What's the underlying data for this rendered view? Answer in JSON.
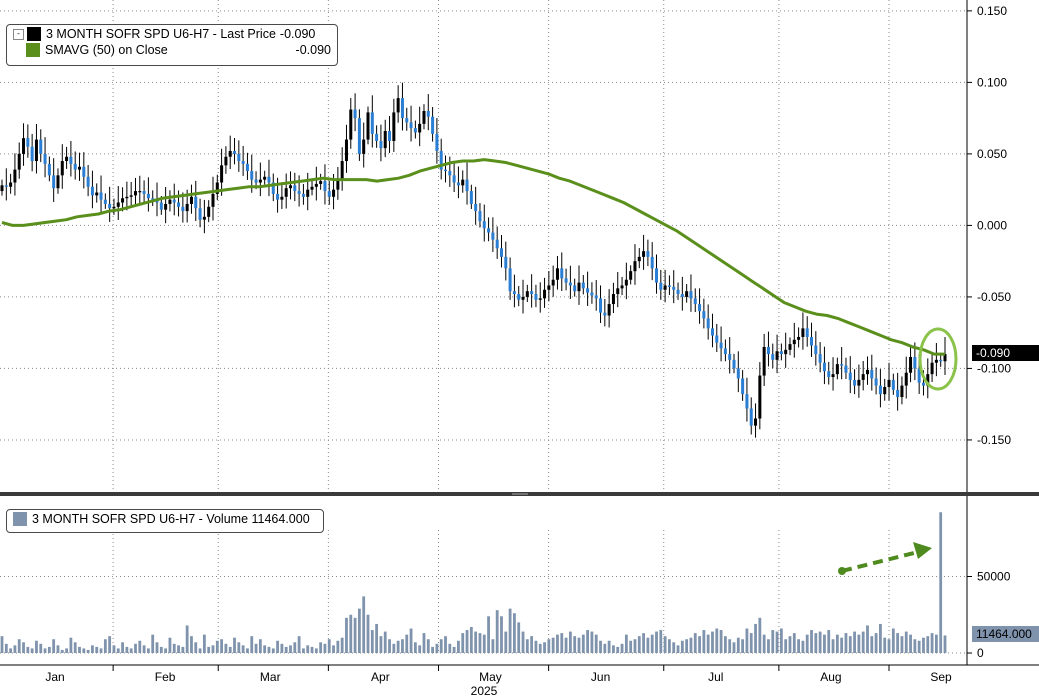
{
  "colors": {
    "up_candle": "#000000",
    "down_candle": "#2a7fd4",
    "sma_line": "#5a8f1c",
    "volume_bar": "#7f93ad",
    "highlight": "#8bc34a",
    "arrow": "#4f8a1e",
    "grid": "#8a8a8a"
  },
  "legend_price": {
    "title": "3 MONTH SOFR SPD U6-H7 - Last Price",
    "value": "-0.090",
    "sma_label": "SMAVG (50)  on Close",
    "sma_value": "-0.090"
  },
  "legend_volume": {
    "title": "3 MONTH SOFR SPD U6-H7 - Volume 11464.000"
  },
  "tags": {
    "price_tag": "-0.090",
    "volume_tag": "11464.000"
  },
  "icons": {
    "highlight": "circle-highlight-icon",
    "arrow": "dashed-arrow-icon"
  },
  "chart_data": [
    {
      "type": "candlestick",
      "title": "3 MONTH SOFR SPD U6-H7 - Last Price",
      "x_tick_labels": [
        "Jan",
        "Feb",
        "Mar",
        "Apr",
        "May",
        "Jun",
        "Jul",
        "Aug",
        "Sep"
      ],
      "x_year_label": "2025",
      "y_tick_labels": [
        "0.150",
        "0.100",
        "0.050",
        "0.000",
        "-0.050",
        "-0.100",
        "-0.150"
      ],
      "ylim": [
        -0.185,
        0.152
      ],
      "grid": true,
      "legend_position": "top-left",
      "last_value": -0.09,
      "series": [
        {
          "name": "3 MONTH SOFR SPD U6-H7 - Last Price",
          "close": [
            0.028,
            0.027,
            0.03,
            0.039,
            0.05,
            0.061,
            0.055,
            0.045,
            0.06,
            0.05,
            0.043,
            0.035,
            0.026,
            0.035,
            0.045,
            0.048,
            0.043,
            0.039,
            0.041,
            0.034,
            0.027,
            0.021,
            0.023,
            0.018,
            0.015,
            0.012,
            0.013,
            0.016,
            0.019,
            0.02,
            0.021,
            0.024,
            0.024,
            0.022,
            0.019,
            0.018,
            0.016,
            0.011,
            0.015,
            0.018,
            0.016,
            0.013,
            0.01,
            0.015,
            0.02,
            0.012,
            0.004,
            0.006,
            0.013,
            0.022,
            0.03,
            0.042,
            0.048,
            0.052,
            0.05,
            0.045,
            0.043,
            0.038,
            0.032,
            0.03,
            0.032,
            0.034,
            0.03,
            0.022,
            0.018,
            0.02,
            0.026,
            0.028,
            0.024,
            0.022,
            0.02,
            0.025,
            0.027,
            0.029,
            0.031,
            0.024,
            0.02,
            0.025,
            0.032,
            0.045,
            0.06,
            0.081,
            0.075,
            0.05,
            0.06,
            0.079,
            0.064,
            0.059,
            0.054,
            0.066,
            0.059,
            0.079,
            0.089,
            0.075,
            0.072,
            0.068,
            0.065,
            0.071,
            0.08,
            0.076,
            0.064,
            0.052,
            0.039,
            0.038,
            0.035,
            0.03,
            0.028,
            0.032,
            0.024,
            0.015,
            0.01,
            0.003,
            -0.002,
            -0.005,
            -0.01,
            -0.016,
            -0.022,
            -0.03,
            -0.046,
            -0.048,
            -0.052,
            -0.05,
            -0.046,
            -0.048,
            -0.052,
            -0.051,
            -0.045,
            -0.042,
            -0.038,
            -0.03,
            -0.037,
            -0.04,
            -0.042,
            -0.046,
            -0.04,
            -0.044,
            -0.047,
            -0.049,
            -0.051,
            -0.061,
            -0.063,
            -0.055,
            -0.048,
            -0.044,
            -0.042,
            -0.038,
            -0.032,
            -0.025,
            -0.022,
            -0.018,
            -0.022,
            -0.03,
            -0.04,
            -0.045,
            -0.042,
            -0.043,
            -0.045,
            -0.048,
            -0.05,
            -0.046,
            -0.051,
            -0.055,
            -0.06,
            -0.065,
            -0.072,
            -0.077,
            -0.082,
            -0.086,
            -0.09,
            -0.094,
            -0.1,
            -0.107,
            -0.118,
            -0.128,
            -0.14,
            -0.135,
            -0.105,
            -0.085,
            -0.09,
            -0.094,
            -0.088,
            -0.09,
            -0.087,
            -0.083,
            -0.08,
            -0.078,
            -0.072,
            -0.078,
            -0.084,
            -0.09,
            -0.096,
            -0.102,
            -0.106,
            -0.104,
            -0.097,
            -0.098,
            -0.103,
            -0.108,
            -0.112,
            -0.108,
            -0.104,
            -0.101,
            -0.107,
            -0.112,
            -0.118,
            -0.113,
            -0.108,
            -0.115,
            -0.12,
            -0.112,
            -0.103,
            -0.092,
            -0.1,
            -0.11,
            -0.112,
            -0.104,
            -0.096,
            -0.094,
            -0.095,
            -0.09
          ],
          "sma": [
            0.002,
            0.0,
            0.0,
            0.001,
            0.002,
            0.003,
            0.004,
            0.006,
            0.007,
            0.008,
            0.01,
            0.011,
            0.013,
            0.015,
            0.017,
            0.019,
            0.02,
            0.021,
            0.022,
            0.023,
            0.024,
            0.025,
            0.026,
            0.027,
            0.027,
            0.028,
            0.029,
            0.03,
            0.031,
            0.032,
            0.033,
            0.032,
            0.032,
            0.032,
            0.032,
            0.031,
            0.032,
            0.033,
            0.035,
            0.038,
            0.04,
            0.042,
            0.044,
            0.045,
            0.045,
            0.046,
            0.045,
            0.044,
            0.042,
            0.04,
            0.038,
            0.036,
            0.033,
            0.031,
            0.028,
            0.025,
            0.022,
            0.019,
            0.016,
            0.012,
            0.008,
            0.004,
            0.0,
            -0.004,
            -0.009,
            -0.014,
            -0.019,
            -0.024,
            -0.029,
            -0.034,
            -0.039,
            -0.044,
            -0.049,
            -0.054,
            -0.057,
            -0.06,
            -0.062,
            -0.063,
            -0.065,
            -0.068,
            -0.071,
            -0.074,
            -0.077,
            -0.08,
            -0.082,
            -0.085,
            -0.087,
            -0.09,
            -0.09
          ]
        }
      ]
    },
    {
      "type": "bar",
      "title": "3 MONTH SOFR SPD U6-H7 - Volume 11464.000",
      "y_tick_labels": [
        "50000",
        "0"
      ],
      "ylim": [
        0,
        100000
      ],
      "grid": true,
      "legend_position": "top-left",
      "last_value": 11464,
      "series": [
        {
          "name": "3 MONTH SOFR SPD U6-H7 - Volume",
          "values": [
            11000,
            6000,
            3000,
            5000,
            9000,
            7000,
            4000,
            3000,
            8000,
            6000,
            3000,
            4000,
            9000,
            5000,
            2000,
            3000,
            10000,
            7000,
            4000,
            3000,
            2000,
            5000,
            4000,
            3000,
            9000,
            11000,
            5000,
            3000,
            7000,
            4000,
            3000,
            6000,
            8000,
            5000,
            3000,
            12000,
            7000,
            4000,
            3000,
            10000,
            6000,
            5000,
            4000,
            18000,
            11000,
            7000,
            3000,
            12000,
            4000,
            5000,
            8000,
            9000,
            6000,
            4000,
            10000,
            7000,
            5000,
            3000,
            11000,
            6000,
            9000,
            5000,
            4000,
            3000,
            8000,
            6000,
            4000,
            5000,
            7000,
            11000,
            3000,
            5000,
            4000,
            3000,
            7000,
            6000,
            9000,
            5000,
            8000,
            10000,
            23000,
            25000,
            23000,
            29000,
            37000,
            25000,
            15000,
            19000,
            11000,
            14000,
            9000,
            6000,
            8000,
            9000,
            12000,
            16000,
            7000,
            5000,
            13000,
            9000,
            4000,
            6000,
            9000,
            11000,
            6000,
            4000,
            8000,
            13000,
            15000,
            17000,
            14000,
            13000,
            12000,
            24000,
            9000,
            28000,
            24000,
            14000,
            29000,
            26000,
            20000,
            14000,
            9000,
            11000,
            8000,
            6000,
            7000,
            9000,
            10000,
            12000,
            13000,
            10000,
            14000,
            11000,
            10000,
            12000,
            15000,
            14000,
            12000,
            8000,
            6000,
            8000,
            5000,
            4000,
            6000,
            12000,
            8000,
            9000,
            11000,
            13000,
            10000,
            12000,
            14000,
            15000,
            11000,
            9000,
            7000,
            5000,
            8000,
            9000,
            10000,
            13000,
            11000,
            15000,
            12000,
            14000,
            16000,
            15000,
            11000,
            9000,
            7000,
            10000,
            9000,
            16000,
            13000,
            19000,
            23000,
            12000,
            9000,
            15000,
            14000,
            16000,
            9000,
            11000,
            13000,
            9000,
            8000,
            12000,
            15000,
            13000,
            14000,
            12000,
            15000,
            9000,
            12000,
            10000,
            13000,
            11000,
            14000,
            12000,
            14000,
            18000,
            11000,
            13000,
            19000,
            10000,
            9000,
            16000,
            13000,
            11000,
            14000,
            12000,
            9000,
            8000,
            10000,
            11000,
            13000,
            12000,
            92000,
            11464
          ]
        }
      ]
    }
  ]
}
